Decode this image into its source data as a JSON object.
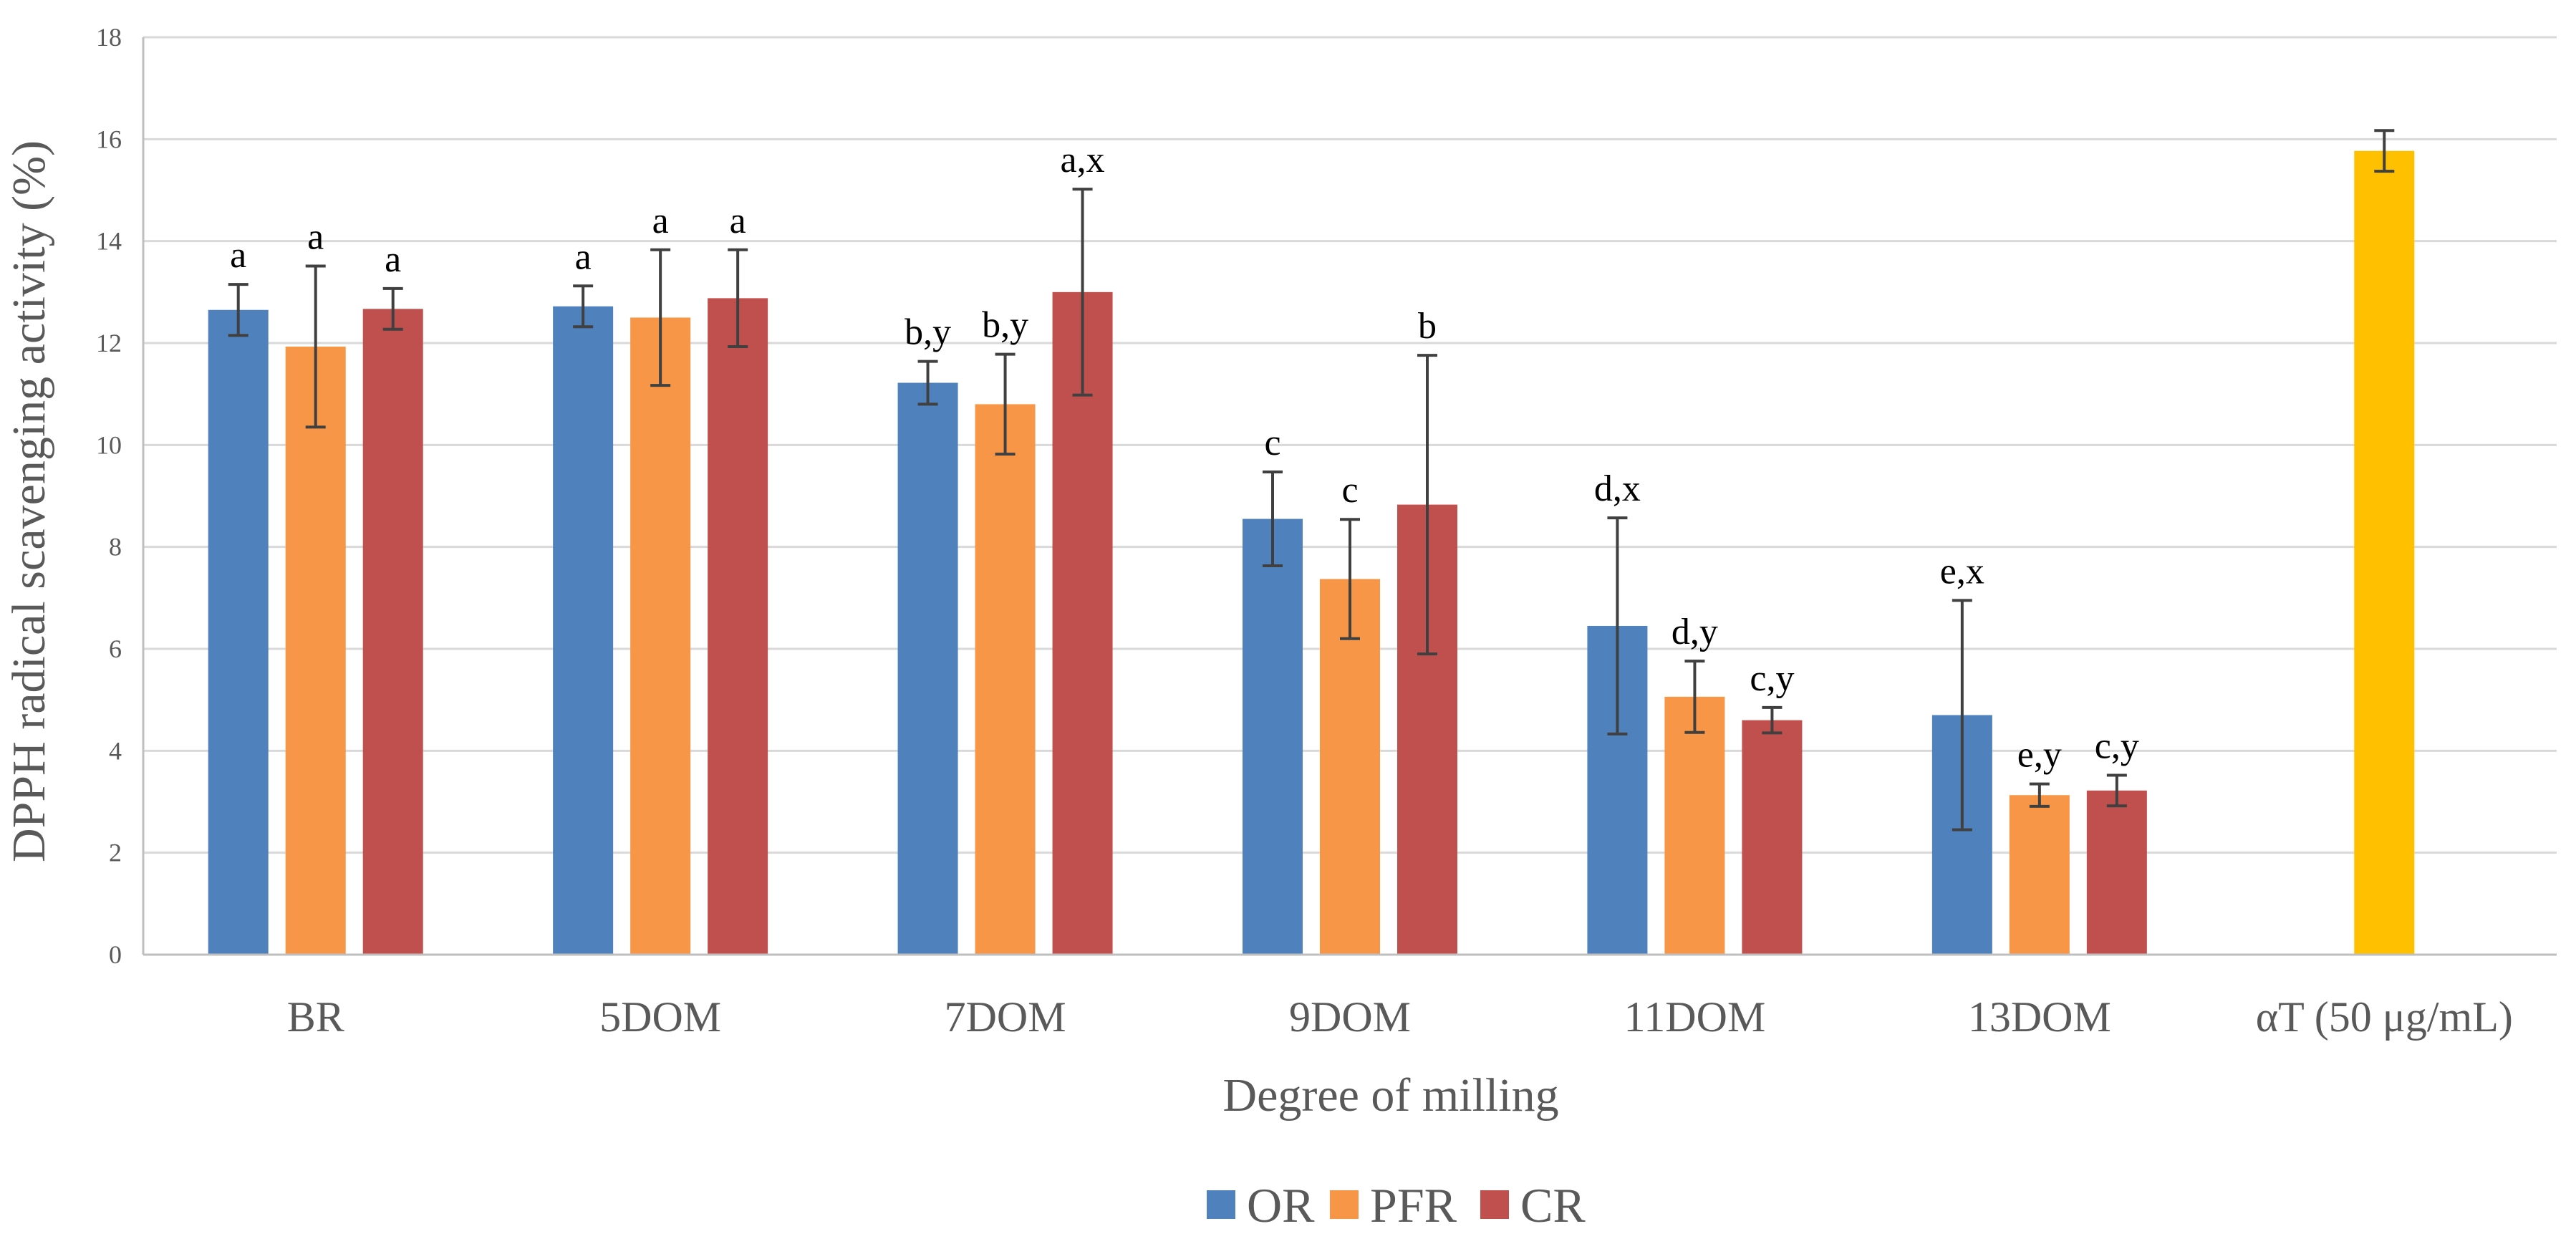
{
  "chart_data": {
    "type": "bar",
    "title": "",
    "xlabel": "Degree of milling",
    "ylabel": "DPPH radical scavenging activity (%)",
    "ylim": [
      0,
      18
    ],
    "yticks": [
      0,
      2,
      4,
      6,
      8,
      10,
      12,
      14,
      16,
      18
    ],
    "grid": "horizontal",
    "legend_position": "bottom",
    "categories": [
      "BR",
      "5DOM",
      "7DOM",
      "9DOM",
      "11DOM",
      "13DOM",
      "αT (50 μg/mL)"
    ],
    "series": [
      {
        "name": "OR",
        "color": "#4F81BD",
        "values": [
          12.65,
          12.72,
          11.22,
          8.55,
          6.45,
          4.7,
          null
        ],
        "errors": [
          0.5,
          0.4,
          0.42,
          0.92,
          2.12,
          2.25,
          null
        ],
        "labels": [
          "a",
          "a",
          "b,y",
          "c",
          "d,x",
          "e,x",
          ""
        ]
      },
      {
        "name": "PFR",
        "color": "#F79646",
        "values": [
          11.93,
          12.5,
          10.8,
          7.37,
          5.06,
          3.13,
          null
        ],
        "errors": [
          1.58,
          1.33,
          0.98,
          1.17,
          0.7,
          0.22,
          null
        ],
        "labels": [
          "a",
          "a",
          "b,y",
          "c",
          "d,y",
          "e,y",
          ""
        ]
      },
      {
        "name": "CR",
        "color": "#C0504D",
        "values": [
          12.67,
          12.88,
          13.0,
          8.83,
          4.6,
          3.22,
          null
        ],
        "errors": [
          0.4,
          0.95,
          2.02,
          2.93,
          0.25,
          0.3,
          null
        ],
        "labels": [
          "a",
          "a",
          "a,x",
          "b",
          "c,y",
          "c,y",
          ""
        ]
      },
      {
        "name": "",
        "color": "#FFC000",
        "values": [
          null,
          null,
          null,
          null,
          null,
          null,
          15.77
        ],
        "errors": [
          null,
          null,
          null,
          null,
          null,
          null,
          0.4
        ],
        "labels": [
          "",
          "",
          "",
          "",
          "",
          "",
          ""
        ]
      }
    ]
  }
}
